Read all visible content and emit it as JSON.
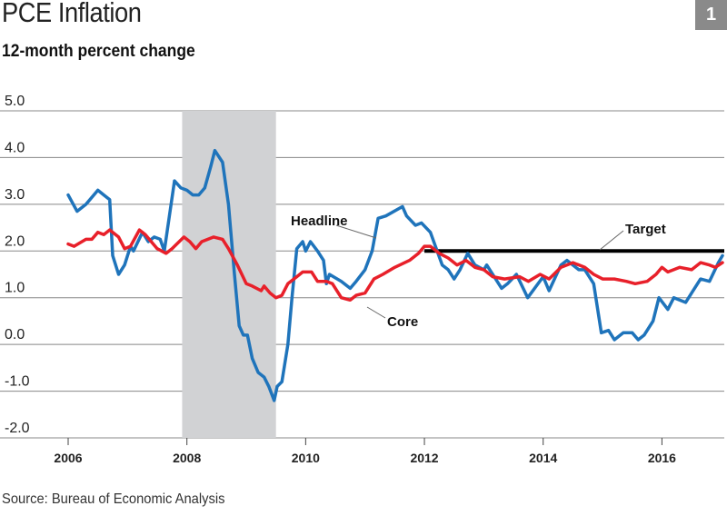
{
  "title": "PCE Inflation",
  "subtitle": "12-month percent change",
  "badge": "1",
  "source": "Source: Bureau of Economic Analysis",
  "chart_data": {
    "type": "line",
    "title": "PCE Inflation",
    "subtitle": "12-month percent change",
    "xlabel": "",
    "ylabel": "",
    "xlim": [
      2006,
      2017.05
    ],
    "ylim": [
      -2.0,
      5.0
    ],
    "grid": true,
    "x_ticks": [
      "2006",
      "2008",
      "2010",
      "2012",
      "2014",
      "2016"
    ],
    "y_ticks": [
      "5.0",
      "4.0",
      "3.0",
      "2.0",
      "1.0",
      "0.0",
      "-1.0",
      "-2.0"
    ],
    "recession_shading": {
      "start": 2007.92,
      "end": 2009.5,
      "color": "#d1d2d4"
    },
    "target": {
      "name": "Target",
      "value": 2.0,
      "start": 2012.0,
      "end": 2017.05,
      "color": "#000000"
    },
    "series": [
      {
        "name": "Headline",
        "color": "#1f74bb",
        "x": [
          2006.0,
          2006.15,
          2006.3,
          2006.5,
          2006.6,
          2006.7,
          2006.75,
          2006.85,
          2006.95,
          2007.05,
          2007.1,
          2007.25,
          2007.35,
          2007.45,
          2007.55,
          2007.62,
          2007.79,
          2007.9,
          2008.0,
          2008.1,
          2008.2,
          2008.3,
          2008.4,
          2008.47,
          2008.6,
          2008.7,
          2008.8,
          2008.88,
          2008.95,
          2009.02,
          2009.1,
          2009.2,
          2009.3,
          2009.38,
          2009.47,
          2009.52,
          2009.6,
          2009.7,
          2009.77,
          2009.85,
          2009.95,
          2010.0,
          2010.08,
          2010.2,
          2010.3,
          2010.35,
          2010.4,
          2010.6,
          2010.75,
          2010.85,
          2011.0,
          2011.12,
          2011.22,
          2011.35,
          2011.63,
          2011.7,
          2011.85,
          2011.95,
          2012.1,
          2012.3,
          2012.4,
          2012.5,
          2012.6,
          2012.73,
          2012.85,
          2013.0,
          2013.05,
          2013.3,
          2013.4,
          2013.55,
          2013.74,
          2014.0,
          2014.1,
          2014.3,
          2014.4,
          2014.6,
          2014.7,
          2014.85,
          2014.98,
          2015.1,
          2015.2,
          2015.35,
          2015.5,
          2015.6,
          2015.7,
          2015.85,
          2015.95,
          2016.1,
          2016.2,
          2016.4,
          2016.55,
          2016.65,
          2016.8,
          2016.95,
          2017.02
        ],
        "y": [
          3.2,
          2.85,
          3.0,
          3.3,
          3.2,
          3.1,
          1.9,
          1.5,
          1.7,
          2.1,
          2.0,
          2.4,
          2.2,
          2.3,
          2.25,
          2.0,
          3.5,
          3.35,
          3.3,
          3.2,
          3.2,
          3.35,
          3.8,
          4.15,
          3.9,
          3.0,
          1.5,
          0.4,
          0.2,
          0.2,
          -0.3,
          -0.6,
          -0.7,
          -0.9,
          -1.2,
          -0.9,
          -0.8,
          0.0,
          1.0,
          2.05,
          2.2,
          2.0,
          2.2,
          2.0,
          1.8,
          1.3,
          1.5,
          1.35,
          1.2,
          1.35,
          1.6,
          2.0,
          2.7,
          2.75,
          2.95,
          2.75,
          2.55,
          2.6,
          2.4,
          1.7,
          1.6,
          1.4,
          1.6,
          1.95,
          1.7,
          1.6,
          1.7,
          1.2,
          1.3,
          1.5,
          1.0,
          1.45,
          1.15,
          1.7,
          1.8,
          1.6,
          1.6,
          1.3,
          0.25,
          0.3,
          0.1,
          0.25,
          0.25,
          0.1,
          0.2,
          0.5,
          1.0,
          0.75,
          1.0,
          0.9,
          1.2,
          1.4,
          1.35,
          1.75,
          1.9
        ]
      },
      {
        "name": "Core",
        "color": "#e8202a",
        "x": [
          2006.0,
          2006.1,
          2006.3,
          2006.4,
          2006.5,
          2006.6,
          2006.7,
          2006.85,
          2006.95,
          2007.05,
          2007.2,
          2007.3,
          2007.5,
          2007.65,
          2007.75,
          2007.95,
          2008.05,
          2008.15,
          2008.25,
          2008.45,
          2008.6,
          2008.7,
          2008.85,
          2009.0,
          2009.1,
          2009.25,
          2009.3,
          2009.4,
          2009.5,
          2009.6,
          2009.7,
          2009.85,
          2009.95,
          2010.1,
          2010.2,
          2010.35,
          2010.45,
          2010.6,
          2010.75,
          2010.85,
          2011.0,
          2011.15,
          2011.3,
          2011.5,
          2011.75,
          2011.9,
          2012.0,
          2012.1,
          2012.25,
          2012.4,
          2012.55,
          2012.7,
          2012.85,
          2013.0,
          2013.15,
          2013.35,
          2013.6,
          2013.75,
          2013.95,
          2014.1,
          2014.3,
          2014.5,
          2014.7,
          2014.85,
          2015.0,
          2015.2,
          2015.4,
          2015.55,
          2015.75,
          2015.9,
          2016.0,
          2016.1,
          2016.3,
          2016.5,
          2016.65,
          2016.8,
          2016.9,
          2017.02
        ],
        "y": [
          2.15,
          2.1,
          2.25,
          2.25,
          2.4,
          2.35,
          2.45,
          2.3,
          2.05,
          2.1,
          2.45,
          2.35,
          2.05,
          1.95,
          2.05,
          2.3,
          2.2,
          2.05,
          2.2,
          2.3,
          2.25,
          2.05,
          1.7,
          1.3,
          1.25,
          1.15,
          1.25,
          1.1,
          1.0,
          1.05,
          1.3,
          1.45,
          1.55,
          1.55,
          1.35,
          1.35,
          1.3,
          1.0,
          0.95,
          1.05,
          1.1,
          1.4,
          1.5,
          1.65,
          1.8,
          1.95,
          2.1,
          2.1,
          1.95,
          1.85,
          1.7,
          1.8,
          1.65,
          1.6,
          1.45,
          1.4,
          1.45,
          1.35,
          1.5,
          1.4,
          1.65,
          1.75,
          1.65,
          1.5,
          1.4,
          1.4,
          1.35,
          1.3,
          1.35,
          1.5,
          1.65,
          1.55,
          1.65,
          1.6,
          1.75,
          1.7,
          1.65,
          1.75
        ]
      }
    ],
    "annotations": [
      "Headline",
      "Core",
      "Target"
    ]
  }
}
